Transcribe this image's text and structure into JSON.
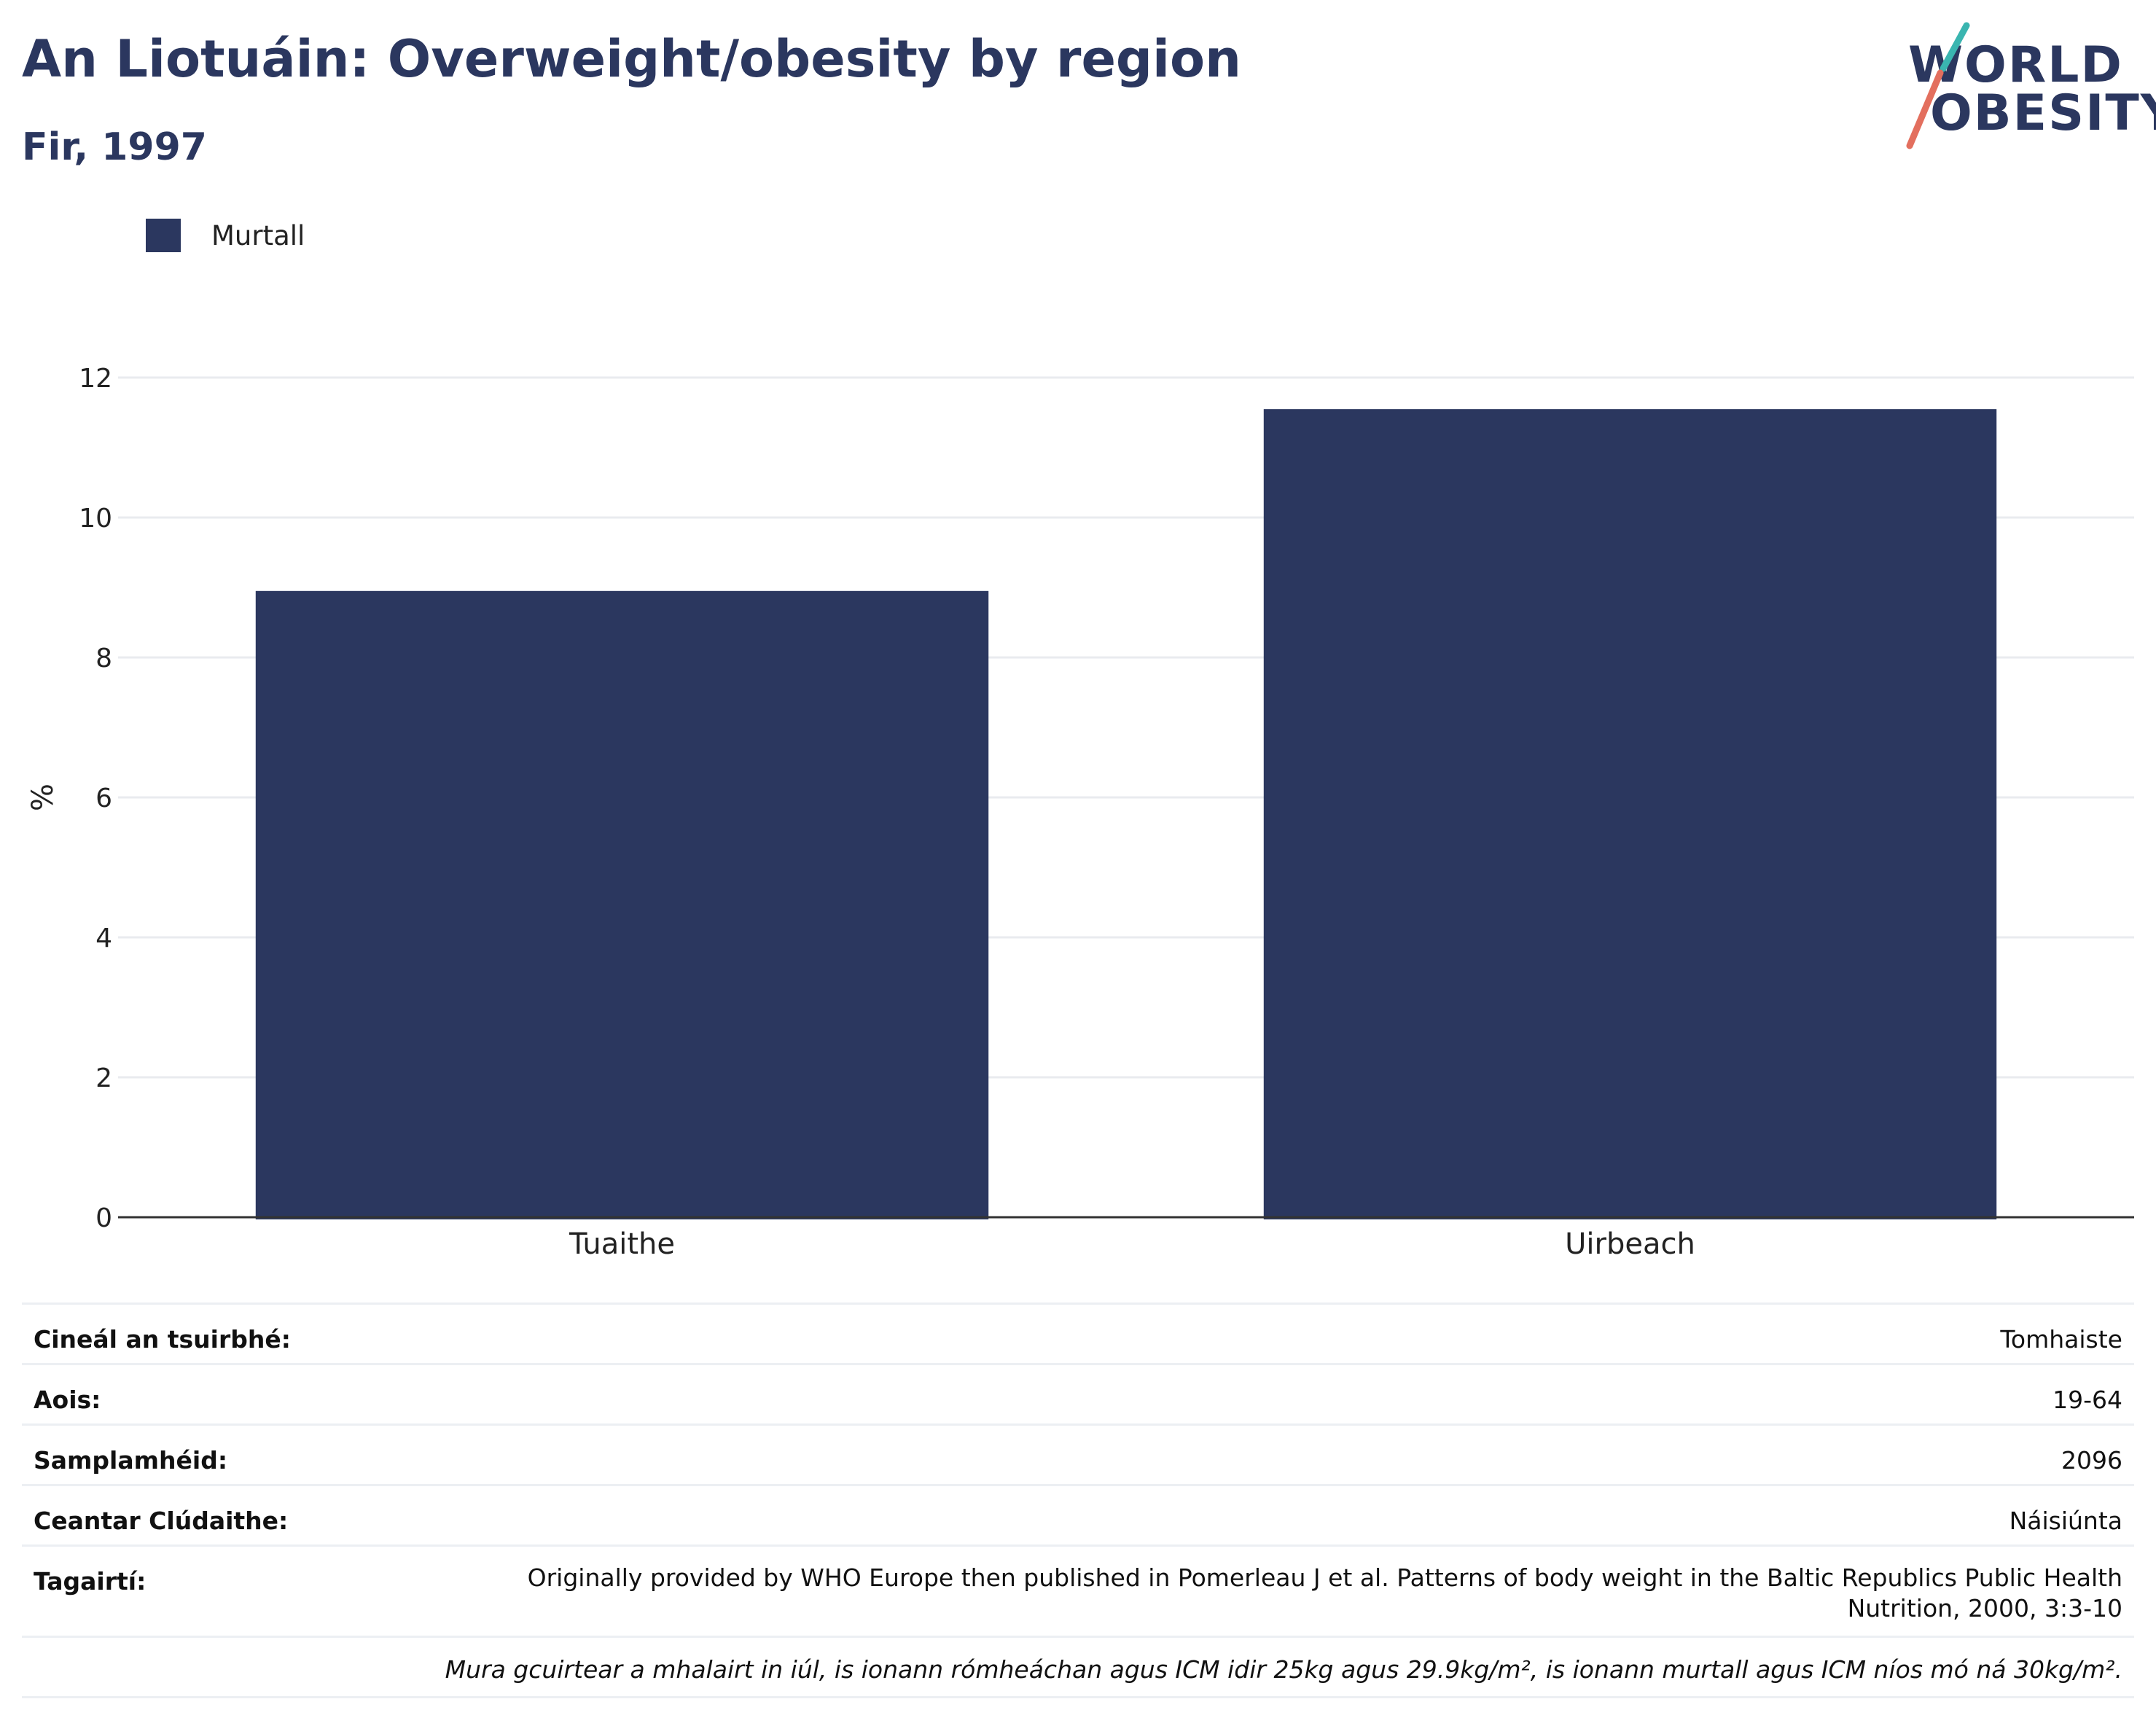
{
  "header": {
    "title": "An Liotuáin: Overweight/obesity by region",
    "subtitle": "Fir, 1997"
  },
  "logo": {
    "line1": "WORLD",
    "line2": "OBESITY",
    "accent_teal": "#3ab5b0",
    "accent_coral": "#e36f5e"
  },
  "legend": {
    "label": "Murtall",
    "color": "#2b375f"
  },
  "chart_data": {
    "type": "bar",
    "title": "An Liotuáin: Overweight/obesity by region",
    "subtitle": "Fir, 1997",
    "categories": [
      "Tuaithe",
      "Uirbeach"
    ],
    "series": [
      {
        "name": "Murtall",
        "values": [
          8.95,
          11.55
        ],
        "color": "#2b375f"
      }
    ],
    "xlabel": "",
    "ylabel": "%",
    "ylim": [
      0,
      12
    ],
    "yticks": [
      0,
      2,
      4,
      6,
      8,
      10,
      12
    ],
    "grid": true,
    "legend_position": "top-left"
  },
  "info": {
    "survey_type": {
      "label": "Cineál an tsuirbhé:",
      "value": "Tomhaiste"
    },
    "age": {
      "label": "Aois:",
      "value": "19-64"
    },
    "sample_size": {
      "label": "Samplamhéid:",
      "value": "2096"
    },
    "area_covered": {
      "label": "Ceantar Clúdaithe:",
      "value": "Náisiúnta"
    },
    "references": {
      "label": "Tagairtí:",
      "value": "Originally provided by WHO Europe then published in Pomerleau J et al. Patterns of body weight in the Baltic Republics Public Health Nutrition, 2000, 3:3-10"
    },
    "note": "Mura gcuirtear a mhalairt in iúl, is ionann rómheáchan agus ICM idir 25kg agus 29.9kg/m², is ionann murtall agus ICM níos mó ná 30kg/m²."
  }
}
